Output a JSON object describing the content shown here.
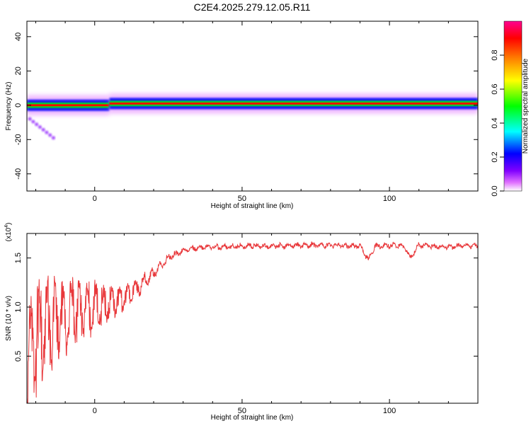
{
  "title": "C2E4.2025.279.12.05.R11",
  "chart_data": [
    {
      "type": "heatmap",
      "xlabel": "Height of straight line (km)",
      "ylabel": "Frequency (Hz)",
      "xlim": [
        -23,
        130
      ],
      "ylim": [
        -50,
        49
      ],
      "xticks": [
        0,
        50,
        100
      ],
      "yticks": [
        -40,
        -20,
        0,
        20,
        40
      ],
      "ytick_labels": [
        "-40",
        "-20",
        "0",
        "20",
        "40"
      ],
      "grid": false,
      "colorbar": {
        "label": "Normalized spectral amplitude",
        "range": [
          0,
          1
        ],
        "ticks": [
          0.0,
          0.2,
          0.4,
          0.6,
          0.8
        ],
        "tick_labels": [
          "0.0",
          "0.2",
          "0.4",
          "0.6",
          "0.8"
        ],
        "colors": [
          "#ffffff",
          "#e070ff",
          "#8000ff",
          "#0000ff",
          "#00ffff",
          "#00ff00",
          "#ffff00",
          "#ff8000",
          "#ff0000",
          "#ff0090"
        ]
      },
      "ridge": {
        "segments": [
          {
            "x": [
              -23,
              5
            ],
            "freq": 0
          },
          {
            "x": [
              5,
              130
            ],
            "freq": 1
          }
        ],
        "spread_hz": 3
      },
      "side_branch": {
        "x": [
          -22,
          -14
        ],
        "freq": [
          -8,
          -19
        ]
      }
    },
    {
      "type": "line",
      "xlabel": "Height of straight line (km)",
      "ylabel": "SNR (10 * v/v)",
      "y_exponent_label": "(x10",
      "y_exponent": "4",
      "xlim": [
        -23,
        130
      ],
      "ylim": [
        0.02,
        1.75
      ],
      "xticks": [
        0,
        50,
        100
      ],
      "yticks": [
        0.5,
        1.0,
        1.5
      ],
      "ytick_labels": [
        "0.5",
        "1.0",
        "1.5"
      ],
      "grid": false,
      "series": [
        {
          "color": "#e8373a",
          "x": [
            -23,
            -20,
            -15,
            -10,
            -5,
            0,
            5,
            10,
            15,
            20,
            25,
            30,
            35,
            40,
            50,
            60,
            70,
            80,
            90,
            93,
            95,
            100,
            105,
            107,
            110,
            115,
            120,
            125,
            130
          ],
          "y": [
            0.4,
            0.7,
            0.85,
            0.9,
            0.95,
            1.0,
            1.05,
            1.1,
            1.2,
            1.35,
            1.5,
            1.58,
            1.6,
            1.61,
            1.62,
            1.62,
            1.63,
            1.63,
            1.62,
            1.48,
            1.62,
            1.63,
            1.62,
            1.5,
            1.63,
            1.62,
            1.61,
            1.63,
            1.62
          ]
        }
      ]
    }
  ]
}
